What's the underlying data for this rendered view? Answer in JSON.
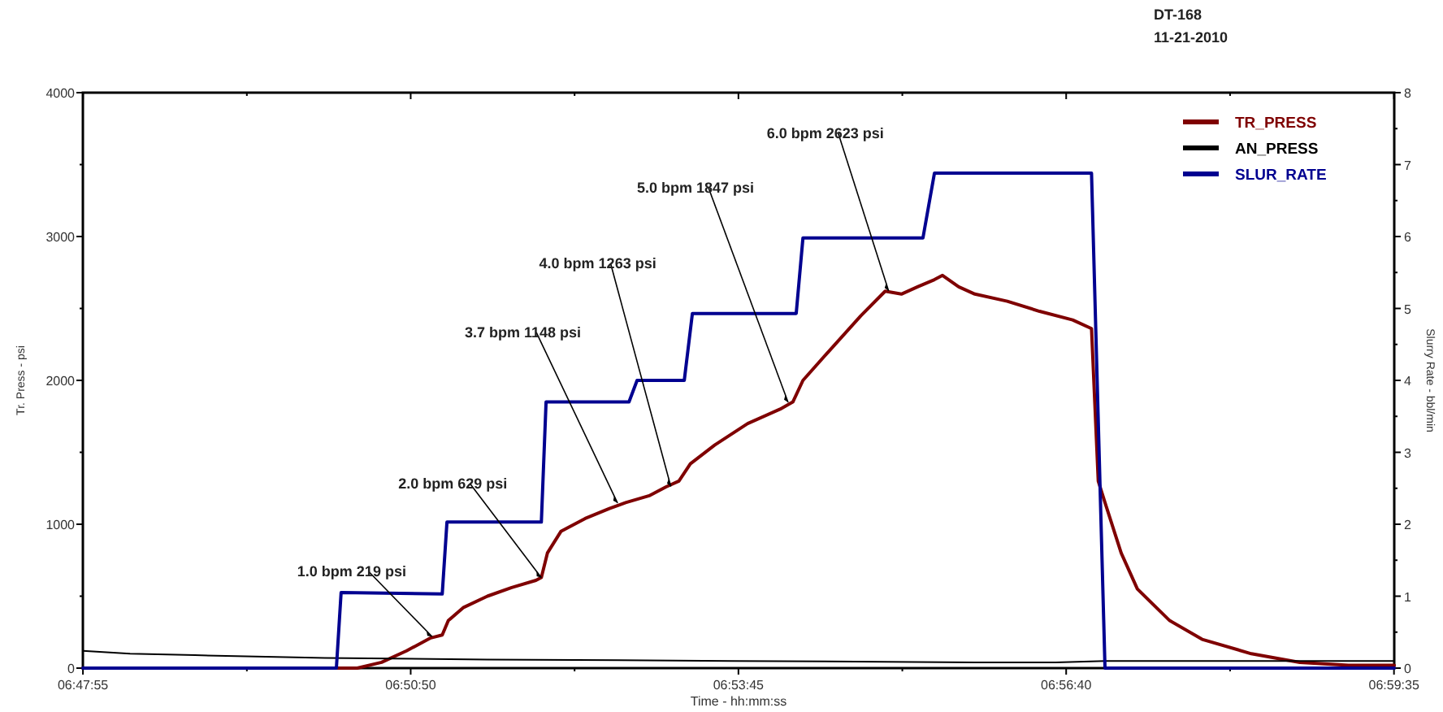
{
  "chart_data": {
    "type": "line",
    "title": "DT-168",
    "subtitle": "11-21-2010",
    "xlabel": "Time - hh:mm:ss",
    "ylabel": "Tr. Press - psi",
    "y2label": "Slurry Rate - bbl/min",
    "xlim": [
      6.7986,
      6.9931
    ],
    "xticks": [
      {
        "value": 6.79861,
        "label": "06:47:55"
      },
      {
        "value": 6.82292,
        "label": null
      },
      {
        "value": 6.84722,
        "label": "06:50:50"
      },
      {
        "value": 6.87153,
        "label": null
      },
      {
        "value": 6.89583,
        "label": "06:53:45"
      },
      {
        "value": 6.92014,
        "label": null
      },
      {
        "value": 6.94444,
        "label": "06:56:40"
      },
      {
        "value": 6.96875,
        "label": null
      },
      {
        "value": 6.99306,
        "label": "06:59:35"
      }
    ],
    "ylim": [
      0,
      4000
    ],
    "yticks": [
      0,
      {
        "value": 500,
        "label": null
      },
      1000,
      {
        "value": 1500,
        "label": null
      },
      2000,
      {
        "value": 2500,
        "label": null
      },
      3000,
      {
        "value": 3500,
        "label": null
      },
      4000
    ],
    "y2lim": [
      0,
      8
    ],
    "y2ticks": [
      0,
      {
        "value": 0.5,
        "label": null
      },
      1,
      {
        "value": 1.5,
        "label": null
      },
      2,
      {
        "value": 2.5,
        "label": null
      },
      3,
      {
        "value": 3.5,
        "label": null
      },
      4,
      {
        "value": 4.5,
        "label": null
      },
      5,
      {
        "value": 5.5,
        "label": null
      },
      6,
      {
        "value": 6.5,
        "label": null
      },
      7,
      {
        "value": 7.5,
        "label": null
      },
      8
    ],
    "grid": false,
    "legend": "top right",
    "line_style": "solid",
    "marker": "none",
    "series": [
      {
        "name": "TR_PRESS",
        "color": "#7f0000",
        "x": [
          6.7986,
          6.8393,
          6.8429,
          6.8466,
          6.8502,
          6.8519,
          6.8528,
          6.855,
          6.8586,
          6.8622,
          6.8658,
          6.8666,
          6.8675,
          6.8695,
          6.8731,
          6.8767,
          6.8791,
          6.8827,
          6.8851,
          6.887,
          6.8887,
          6.8923,
          6.8972,
          6.902,
          6.9039,
          6.9054,
          6.9092,
          6.914,
          6.9176,
          6.92,
          6.9224,
          6.9249,
          6.9261,
          6.9285,
          6.9309,
          6.9357,
          6.9405,
          6.9454,
          6.9482,
          6.9492,
          6.9502,
          6.9526,
          6.955,
          6.9598,
          6.9646,
          6.9719,
          6.9791,
          6.9863,
          6.9931
        ],
        "values": [
          0,
          0,
          40,
          120,
          210,
          230,
          330,
          420,
          500,
          560,
          610,
          630,
          800,
          950,
          1040,
          1110,
          1150,
          1200,
          1260,
          1300,
          1420,
          1550,
          1700,
          1800,
          1850,
          2000,
          2200,
          2450,
          2620,
          2600,
          2650,
          2700,
          2730,
          2650,
          2600,
          2550,
          2480,
          2420,
          2360,
          1300,
          1150,
          800,
          550,
          330,
          200,
          100,
          40,
          20,
          20
        ]
      },
      {
        "name": "AN_PRESS",
        "color": "#000000",
        "x": [
          6.7986,
          6.8056,
          6.8152,
          6.8345,
          6.8586,
          6.8948,
          6.9309,
          6.9429,
          6.9502,
          6.9931
        ],
        "values": [
          120,
          100,
          90,
          70,
          60,
          50,
          40,
          40,
          50,
          50
        ]
      },
      {
        "name": "SLUR_RATE",
        "color": "#000090",
        "axis": "y2",
        "x": [
          6.7986,
          6.8362,
          6.8369,
          6.8519,
          6.8526,
          6.8666,
          6.8673,
          6.8796,
          6.8808,
          6.8878,
          6.889,
          6.9044,
          6.9054,
          6.9232,
          6.9249,
          6.9482,
          6.9502,
          6.9931
        ],
        "values": [
          0,
          0,
          1.05,
          1.03,
          2.03,
          2.03,
          3.7,
          3.7,
          4.0,
          4.0,
          4.93,
          4.93,
          5.98,
          5.98,
          6.88,
          6.88,
          0,
          0
        ]
      }
    ],
    "annotations": [
      {
        "text": "1.0 bpm 219 psi",
        "x": 6.8504,
        "y": 219
      },
      {
        "text": "2.0 bpm 629 psi",
        "x": 6.8666,
        "y": 629
      },
      {
        "text": "3.7 bpm 1148 psi",
        "x": 6.8779,
        "y": 1148
      },
      {
        "text": "4.0 bpm 1263 psi",
        "x": 6.8858,
        "y": 1263
      },
      {
        "text": "5.0 bpm 1847 psi",
        "x": 6.9032,
        "y": 1847
      },
      {
        "text": "6.0 bpm 2623 psi",
        "x": 6.9181,
        "y": 2623
      }
    ]
  }
}
